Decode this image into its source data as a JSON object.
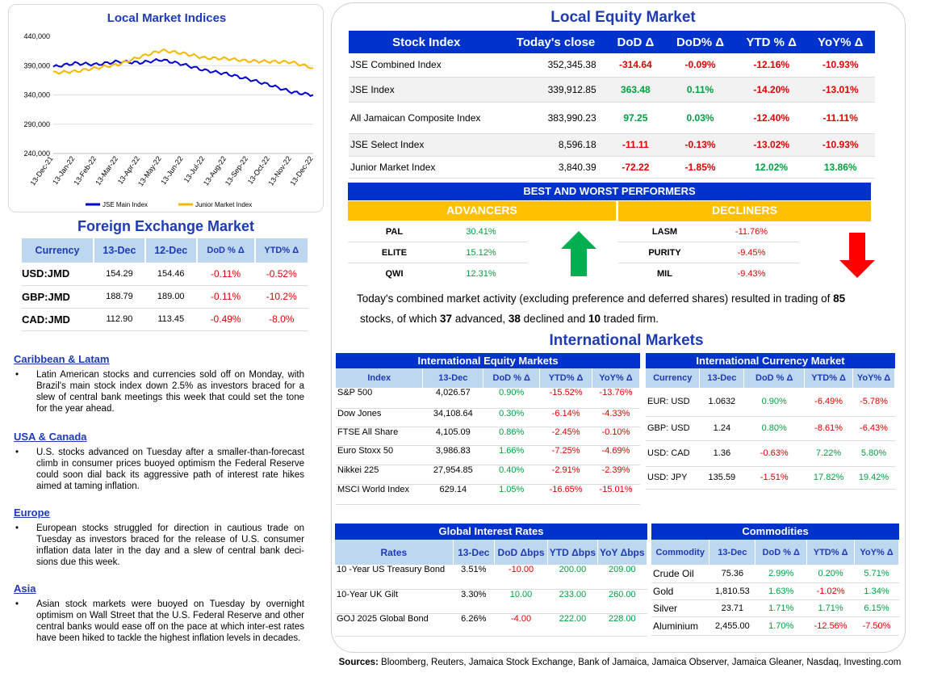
{
  "indices_chart": {
    "title": "Local Market Indices",
    "chart_data": {
      "type": "line",
      "x": [
        "13-Dec-21",
        "13-Jan-22",
        "13-Feb-22",
        "13-Mar-22",
        "13-Apr-22",
        "13-May-22",
        "13-Jun-22",
        "13-Jul-22",
        "13-Aug-22",
        "13-Sep-22",
        "13-Oct-22",
        "13-Nov-22",
        "13-Dec-22"
      ],
      "series": [
        {
          "name": "JSE Main Index",
          "color": "#0000cc",
          "values": [
            388000,
            394000,
            392000,
            397000,
            395000,
            400000,
            392000,
            382000,
            376000,
            367000,
            357000,
            345000,
            340000
          ]
        },
        {
          "name": "Junior Market Index",
          "color": "#f5b800",
          "values": [
            378000,
            380000,
            386000,
            392000,
            405000,
            416000,
            411000,
            403000,
            402000,
            398000,
            397000,
            396000,
            386000
          ]
        }
      ],
      "yticks": [
        "440,000",
        "390,000",
        "340,000",
        "290,000",
        "240,000"
      ],
      "ylim": [
        240000,
        440000
      ]
    }
  },
  "fx": {
    "title": "Foreign Exchange Market",
    "headers": [
      "Currency",
      "13-Dec",
      "12-Dec",
      "DoD % Δ",
      "YTD% Δ"
    ],
    "rows": [
      {
        "c": "USD:JMD",
        "a": "154.29",
        "b": "154.46",
        "d": "-0.11%",
        "y": "-0.52%"
      },
      {
        "c": "GBP:JMD",
        "a": "188.79",
        "b": "189.00",
        "d": "-0.11%",
        "y": "-10.2%"
      },
      {
        "c": "CAD:JMD",
        "a": "112.90",
        "b": "113.45",
        "d": "-0.49%",
        "y": "-8.0%"
      }
    ]
  },
  "news": [
    {
      "title": "Caribbean & Latam",
      "text": "Latin American stocks and currencies sold off on Monday, with Brazil's main stock index down 2.5% as investors braced for a slew of central bank meetings this week that could set the tone for the year ahead."
    },
    {
      "title": "USA & Canada",
      "text": "U.S. stocks advanced on Tuesday after a smaller-than-forecast climb in consumer prices buoyed optimism the Federal Reserve could soon dial back its aggressive path of interest rate hikes aimed at taming inflation."
    },
    {
      "title": "Europe",
      "text": "European stocks struggled for direction in cautious trade on Tuesday as investors braced for the release of U.S. consumer inflation data later in the day and a slew of central bank deci-sions due this week."
    },
    {
      "title": "Asia",
      "text": "Asian stock markets were buoyed on Tuesday by overnight optimism on Wall Street that the U.S. Federal Reserve and other central banks would ease off on the pace at which inter-est rates have been hiked to tackle the highest inflation levels in decades."
    }
  ],
  "equity": {
    "title": "Local Equity Market",
    "headers": [
      "Stock Index",
      "Today's close",
      "DoD  Δ",
      "DoD% Δ",
      "YTD % Δ",
      "YoY% Δ"
    ],
    "rows": [
      {
        "n": "JSE Combined Index",
        "c": "352,345.38",
        "d": "-314.64",
        "p": "-0.09%",
        "y": "-12.16%",
        "o": "-10.93%"
      },
      {
        "n": "JSE Index",
        "c": "339,912.85",
        "d": "363.48",
        "p": "0.11%",
        "y": "-14.20%",
        "o": "-13.01%"
      },
      {
        "n": "All Jamaican Composite Index",
        "c": "383,990.23",
        "d": "97.25",
        "p": "0.03%",
        "y": "-12.40%",
        "o": "-11.11%"
      },
      {
        "n": "JSE Select Index",
        "c": "8,596.18",
        "d": "-11.11",
        "p": "-0.13%",
        "y": "-13.02%",
        "o": "-10.93%"
      },
      {
        "n": "Junior Market Index",
        "c": "3,840.39",
        "d": "-72.22",
        "p": "-1.85%",
        "y": "12.02%",
        "o": "13.86%"
      }
    ]
  },
  "performers": {
    "title": "BEST AND WORST PERFORMERS",
    "adv_label": "ADVANCERS",
    "dec_label": "DECLINERS",
    "advancers": [
      {
        "s": "PAL",
        "v": "30.41%"
      },
      {
        "s": "ELITE",
        "v": "15.12%"
      },
      {
        "s": "QWI",
        "v": "12.31%"
      }
    ],
    "decliners": [
      {
        "s": "LASM",
        "v": "-11.76%"
      },
      {
        "s": "PURITY",
        "v": "-9.45%"
      },
      {
        "s": "MIL",
        "v": "-9.43%"
      }
    ]
  },
  "summary": {
    "p1": "Today's combined market activity (excluding preference and deferred shares) resulted in trading of ",
    "n1": "85",
    "p2": "stocks, of which ",
    "n2": "37",
    "p3": " advanced, ",
    "n3": "38",
    "p4": " declined and ",
    "n4": "10",
    "p5": " traded firm."
  },
  "intl_title": "International Markets",
  "intl_equity": {
    "title": "International Equity Markets",
    "headers": [
      "Index",
      "13-Dec",
      "DoD % Δ",
      "YTD% Δ",
      "YoY% Δ"
    ],
    "rows": [
      {
        "n": "S&P 500",
        "v": "4,026.57",
        "d": "0.90%",
        "y": "-15.52%",
        "o": "-13.76%"
      },
      {
        "n": "Dow Jones",
        "v": "34,108.64",
        "d": "0.30%",
        "y": "-6.14%",
        "o": "-4.33%"
      },
      {
        "n": "FTSE All Share",
        "v": "4,105.09",
        "d": "0.86%",
        "y": "-2.45%",
        "o": "-0.10%"
      },
      {
        "n": "Euro Stoxx 50",
        "v": "3,986.83",
        "d": "1.66%",
        "y": "-7.25%",
        "o": "-4.69%"
      },
      {
        "n": "Nikkei 225",
        "v": "27,954.85",
        "d": "0.40%",
        "y": "-2.91%",
        "o": "-2.39%"
      },
      {
        "n": "MSCI World Index",
        "v": "629.14",
        "d": "1.05%",
        "y": "-16.65%",
        "o": "-15.01%"
      }
    ]
  },
  "intl_fx": {
    "title": "International Currency Market",
    "headers": [
      "Currency",
      "13-Dec",
      "DoD % Δ",
      "YTD% Δ",
      "YoY% Δ"
    ],
    "rows": [
      {
        "n": "EUR: USD",
        "v": "1.0632",
        "d": "0.90%",
        "y": "-6.49%",
        "o": "-5.78%"
      },
      {
        "n": "GBP: USD",
        "v": "1.24",
        "d": "0.80%",
        "y": "-8.61%",
        "o": "-6.43%"
      },
      {
        "n": "USD: CAD",
        "v": "1.36",
        "d": "-0.63%",
        "y": "7.22%",
        "o": "5.80%"
      },
      {
        "n": "USD: JPY",
        "v": "135.59",
        "d": "-1.51%",
        "y": "17.82%",
        "o": "19.42%"
      }
    ]
  },
  "rates": {
    "title": "Global Interest Rates",
    "headers": [
      "Rates",
      "13-Dec",
      "DoD Δbps",
      "YTD Δbps",
      "YoY Δbps"
    ],
    "rows": [
      {
        "n": "10 -Year US Treasury Bond",
        "v": "3.51%",
        "d": "-10.00",
        "y": "200.00",
        "o": "209.00"
      },
      {
        "n": "10-Year UK Gilt",
        "v": "3.30%",
        "d": "10.00",
        "y": "233.00",
        "o": "260.00"
      },
      {
        "n": "GOJ 2025 Global Bond",
        "v": "6.26%",
        "d": "-4.00",
        "y": "222.00",
        "o": "228.00"
      }
    ]
  },
  "commod": {
    "title": "Commodities",
    "headers": [
      "Commodity",
      "13-Dec",
      "DoD % Δ",
      "YTD% Δ",
      "YoY% Δ"
    ],
    "rows": [
      {
        "n": "Crude Oil",
        "v": "75.36",
        "d": "2.99%",
        "y": "0.20%",
        "o": "5.71%"
      },
      {
        "n": "Gold",
        "v": "1,810.53",
        "d": "1.63%",
        "y": "-1.02%",
        "o": "1.34%"
      },
      {
        "n": "Silver",
        "v": "23.71",
        "d": "1.71%",
        "y": "1.71%",
        "o": "6.15%"
      },
      {
        "n": "Aluminium",
        "v": "2,455.00",
        "d": "1.70%",
        "y": "-12.56%",
        "o": "-7.50%"
      }
    ]
  },
  "sources": {
    "label": "Sources:",
    "text": " Bloomberg, Reuters, Jamaica Stock Exchange, Bank of Jamaica, Jamaica Observer, Jamaica Gleaner, Nasdaq, Investing.com"
  }
}
